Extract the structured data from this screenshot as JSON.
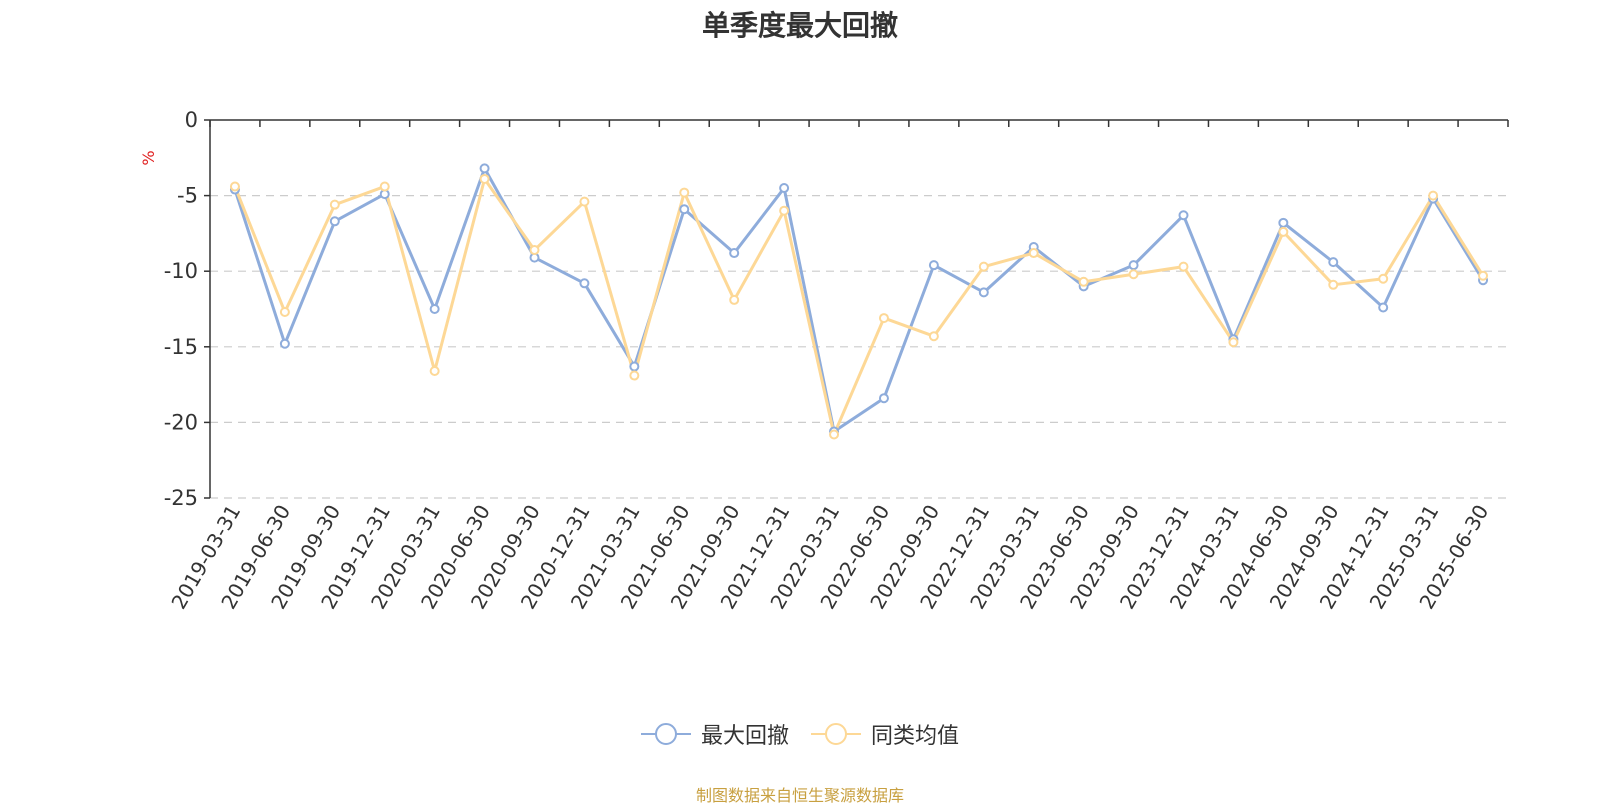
{
  "chart_data": {
    "type": "line",
    "title": "单季度最大回撤",
    "ylabel": "%",
    "ylim": [
      -25,
      0
    ],
    "yticks": [
      0,
      -5,
      -10,
      -15,
      -20,
      -25
    ],
    "grid": true,
    "legend_position": "bottom",
    "categories": [
      "2019-03-31",
      "2019-06-30",
      "2019-09-30",
      "2019-12-31",
      "2020-03-31",
      "2020-06-30",
      "2020-09-30",
      "2020-12-31",
      "2021-03-31",
      "2021-06-30",
      "2021-09-30",
      "2021-12-31",
      "2022-03-31",
      "2022-06-30",
      "2022-09-30",
      "2022-12-31",
      "2023-03-31",
      "2023-06-30",
      "2023-09-30",
      "2023-12-31",
      "2024-03-31",
      "2024-06-30",
      "2024-09-30",
      "2024-12-31",
      "2025-03-31",
      "2025-06-30"
    ],
    "series": [
      {
        "name": "最大回撤",
        "color": "#8eacdb",
        "values": [
          -4.6,
          -14.8,
          -6.7,
          -4.9,
          -12.5,
          -3.2,
          -9.1,
          -10.8,
          -16.3,
          -5.9,
          -8.8,
          -4.5,
          -20.6,
          -18.4,
          -9.6,
          -11.4,
          -8.4,
          -11.0,
          -9.6,
          -6.3,
          -14.5,
          -6.8,
          -9.4,
          -12.4,
          -5.2,
          -10.6
        ]
      },
      {
        "name": "同类均值",
        "color": "#fdd896",
        "values": [
          -4.4,
          -12.7,
          -5.6,
          -4.4,
          -16.6,
          -3.9,
          -8.6,
          -5.4,
          -16.9,
          -4.8,
          -11.9,
          -6.0,
          -20.8,
          -13.1,
          -14.3,
          -9.7,
          -8.8,
          -10.7,
          -10.2,
          -9.7,
          -14.7,
          -7.4,
          -10.9,
          -10.5,
          -5.0,
          -10.3
        ]
      }
    ]
  },
  "source_note": "制图数据来自恒生聚源数据库",
  "colors": {
    "axis": "#333333",
    "grid": "#cccccc",
    "unit": "#e02020",
    "source": "#c8a040"
  }
}
